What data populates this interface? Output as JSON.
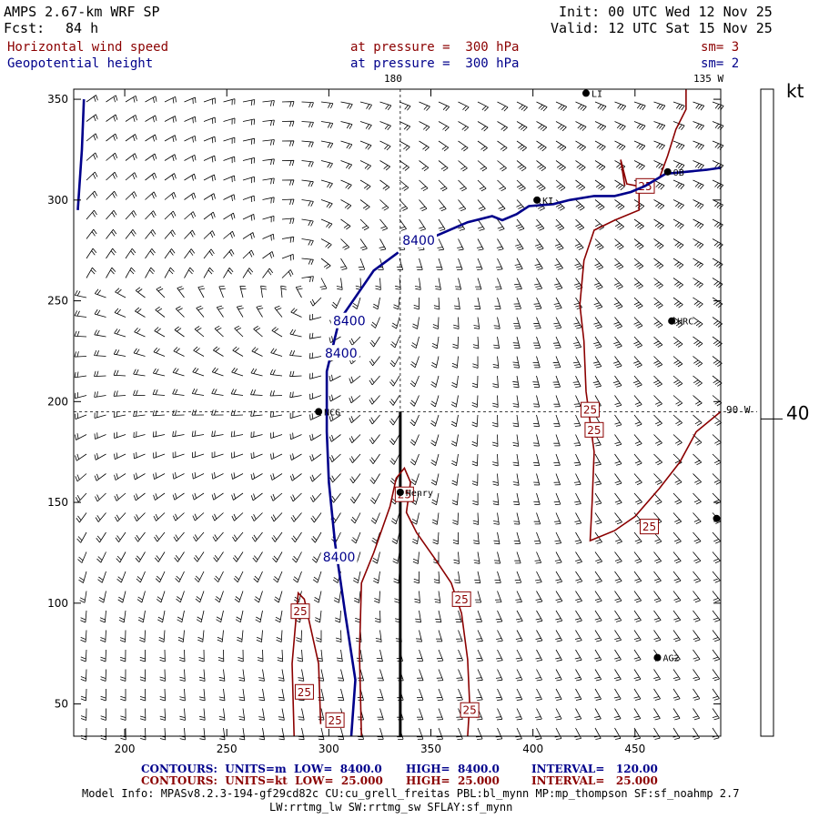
{
  "header": {
    "model": "AMPS 2.67-km WRF SP",
    "forecast_label": "Fcst:",
    "forecast_hours": "84 h",
    "init": "Init: 00 UTC Wed 12 Nov 25",
    "valid": "Valid: 12 UTC Sat 15 Nov 25",
    "field1": {
      "name": "Horizontal wind speed",
      "level": "at pressure =  300 hPa",
      "smooth": "sm= 3"
    },
    "field2": {
      "name": "Geopotential height",
      "level": "at pressure =  300 hPa",
      "smooth": "sm= 2"
    }
  },
  "map_labels": {
    "top_meridian": "180",
    "top_right_meridian": "135 W",
    "right_meridian": "90 W"
  },
  "colorbar": {
    "unit": "kt",
    "value": "40"
  },
  "stations": [
    {
      "name": "LI",
      "x": 426,
      "y": 353
    },
    {
      "name": "OB",
      "x": 466,
      "y": 314
    },
    {
      "name": "KI",
      "x": 402,
      "y": 300
    },
    {
      "name": "HRC",
      "x": 468,
      "y": 240
    },
    {
      "name": "NCG",
      "x": 295,
      "y": 195
    },
    {
      "name": "Henry",
      "x": 335,
      "y": 155
    },
    {
      "name": "",
      "x": 490,
      "y": 142
    },
    {
      "name": "AG2",
      "x": 461,
      "y": 73
    }
  ],
  "chart_data": {
    "type": "contour",
    "xlim": [
      175,
      492
    ],
    "ylim": [
      34,
      355
    ],
    "xticks": [
      "200",
      "250",
      "300",
      "350",
      "400",
      "450"
    ],
    "yticks": [
      "50",
      "100",
      "150",
      "200",
      "250",
      "300",
      "350"
    ],
    "grid_lines": {
      "x": 335,
      "y": 195
    },
    "cross_section": {
      "x": 335,
      "y_from": 34,
      "y_to": 195
    },
    "height_contours": {
      "color": "#00008b",
      "label": "8400",
      "lines": [
        [
          [
            180,
            350
          ],
          [
            179,
            325
          ],
          [
            177,
            295
          ]
        ],
        [
          [
            311,
            34
          ],
          [
            313,
            62
          ],
          [
            308,
            95
          ],
          [
            303,
            130
          ],
          [
            300,
            160
          ],
          [
            299,
            185
          ],
          [
            299,
            215
          ],
          [
            305,
            240
          ],
          [
            322,
            265
          ],
          [
            334,
            274
          ]
        ],
        [
          [
            352,
            282
          ],
          [
            368,
            289
          ],
          [
            380,
            292
          ],
          [
            385,
            290
          ],
          [
            392,
            293
          ],
          [
            398,
            297
          ],
          [
            410,
            298
          ],
          [
            418,
            300
          ],
          [
            430,
            302
          ],
          [
            440,
            302
          ],
          [
            448,
            304
          ],
          [
            455,
            307
          ],
          [
            465,
            313
          ],
          [
            475,
            314
          ],
          [
            485,
            315
          ],
          [
            492,
            316
          ]
        ]
      ],
      "labels": [
        {
          "text": "8400",
          "x": 344,
          "y": 280
        },
        {
          "text": "8400",
          "x": 310,
          "y": 240
        },
        {
          "text": "8400",
          "x": 306,
          "y": 224
        },
        {
          "text": "8400",
          "x": 305,
          "y": 123
        }
      ]
    },
    "speed_contours": {
      "color": "#8b0000",
      "label": "25",
      "lines": [
        [
          [
            283,
            34
          ],
          [
            282,
            70
          ],
          [
            285,
            105
          ],
          [
            288,
            102
          ],
          [
            295,
            70
          ],
          [
            296,
            40
          ]
        ],
        [
          [
            316,
            34
          ],
          [
            315,
            75
          ],
          [
            316,
            110
          ],
          [
            322,
            125
          ],
          [
            330,
            148
          ],
          [
            333,
            162
          ],
          [
            337,
            167
          ],
          [
            340,
            160
          ],
          [
            338,
            145
          ],
          [
            343,
            135
          ],
          [
            352,
            122
          ],
          [
            360,
            110
          ],
          [
            365,
            95
          ],
          [
            368,
            72
          ],
          [
            369,
            50
          ],
          [
            368,
            34
          ]
        ],
        [
          [
            475,
            355
          ],
          [
            475,
            345
          ],
          [
            470,
            335
          ],
          [
            466,
            322
          ],
          [
            462,
            311
          ],
          [
            452,
            306
          ],
          [
            452,
            295
          ],
          [
            440,
            290
          ],
          [
            430,
            285
          ],
          [
            425,
            270
          ],
          [
            423,
            248
          ],
          [
            425,
            230
          ],
          [
            426,
            205
          ],
          [
            428,
            190
          ],
          [
            430,
            175
          ],
          [
            429,
            150
          ],
          [
            428,
            131
          ],
          [
            440,
            136
          ],
          [
            450,
            143
          ],
          [
            462,
            157
          ],
          [
            472,
            170
          ],
          [
            480,
            185
          ],
          [
            492,
            195
          ]
        ],
        [
          [
            445,
            307
          ],
          [
            443,
            320
          ],
          [
            446,
            308
          ],
          [
            451,
            307
          ]
        ]
      ],
      "labels": [
        {
          "text": "25",
          "x": 428,
          "y": 196
        },
        {
          "text": "25",
          "x": 430,
          "y": 186
        },
        {
          "text": "25",
          "x": 337,
          "y": 154
        },
        {
          "text": "25",
          "x": 457,
          "y": 138
        },
        {
          "text": "25",
          "x": 365,
          "y": 102
        },
        {
          "text": "25",
          "x": 286,
          "y": 96
        },
        {
          "text": "25",
          "x": 288,
          "y": 56
        },
        {
          "text": "25",
          "x": 303,
          "y": 42
        },
        {
          "text": "25",
          "x": 369,
          "y": 47
        },
        {
          "text": "25",
          "x": 455,
          "y": 307
        }
      ]
    }
  },
  "footer": {
    "line1": {
      "label": "CONTOURS:  UNITS=m  LOW=  8400.0",
      "high": "HIGH=  8400.0",
      "interval": "INTERVAL=   120.00"
    },
    "line2": {
      "label": "CONTOURS:  UNITS=kt  LOW=  25.000",
      "high": "HIGH=  25.000",
      "interval": "INTERVAL=   25.000"
    },
    "model_info": "Model Info: MPASv8.2.3-194-gf29cd82c CU:cu_grell_freitas PBL:bl_mynn MP:mp_thompson SF:sf_noahmp 2.7",
    "model_info2": "LW:rrtmg_lw SW:rrtmg_sw SFLAY:sf_mynn"
  }
}
